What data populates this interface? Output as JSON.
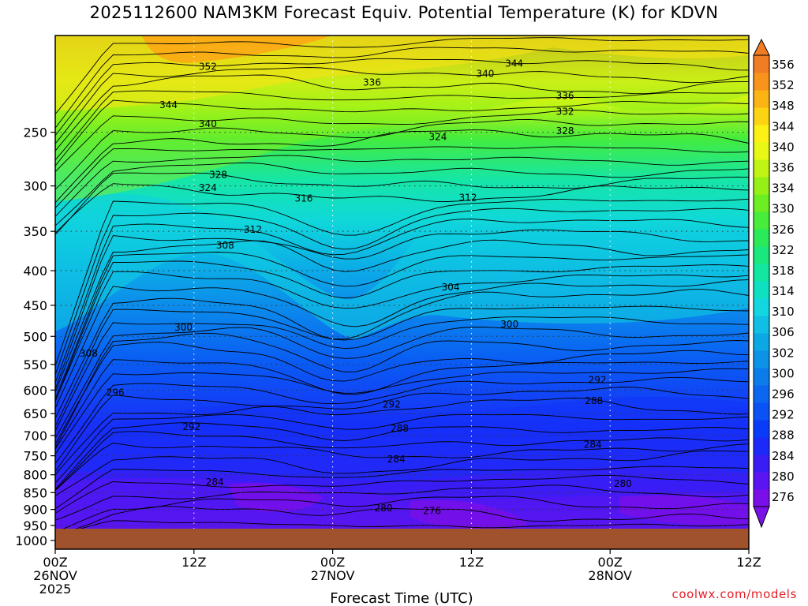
{
  "chart_data": {
    "type": "contour",
    "title": "2025112600 NAM3KM Forecast Equiv. Potential Temperature (K) for KDVN",
    "xlabel": "Forecast Time (UTC)",
    "ylabel": "",
    "credit": "coolwx.com/models",
    "x_ticks": [
      {
        "hours": 0,
        "lines": [
          "00Z",
          "26NOV",
          "2025"
        ]
      },
      {
        "hours": 12,
        "lines": [
          "12Z"
        ]
      },
      {
        "hours": 24,
        "lines": [
          "00Z",
          "27NOV"
        ]
      },
      {
        "hours": 36,
        "lines": [
          "12Z"
        ]
      },
      {
        "hours": 48,
        "lines": [
          "00Z",
          "28NOV"
        ]
      },
      {
        "hours": 60,
        "lines": [
          "12Z"
        ]
      }
    ],
    "xlim_hours": [
      0,
      60
    ],
    "y_ticks": [
      250,
      300,
      350,
      400,
      450,
      500,
      550,
      600,
      650,
      700,
      750,
      800,
      850,
      900,
      950,
      1000
    ],
    "ylim_hpa": [
      180,
      1030
    ],
    "y_scale": "log",
    "colorbar_levels": [
      276,
      280,
      284,
      288,
      292,
      296,
      300,
      302,
      306,
      310,
      314,
      318,
      322,
      326,
      330,
      334,
      336,
      340,
      344,
      348,
      352,
      356
    ],
    "colorbar_colors": [
      "#7a0fe8",
      "#5a15f0",
      "#3a1cf5",
      "#1b2af8",
      "#0a3cf8",
      "#0a52f5",
      "#0b66f0",
      "#0c7cea",
      "#0c92e6",
      "#0ca8e4",
      "#0fc0e4",
      "#12d6e0",
      "#10e0c2",
      "#12e6a0",
      "#1ae87c",
      "#2aea5a",
      "#48ec3a",
      "#6cee22",
      "#96f018",
      "#c0f416",
      "#e6f814",
      "#fcf014",
      "#fcd414",
      "#fcb414",
      "#f8941c",
      "#f07c24"
    ],
    "ground_color": "#a0522d",
    "contour_labels": [
      {
        "text": "352",
        "hours": 13.2,
        "p": 200
      },
      {
        "text": "344",
        "hours": 9.8,
        "p": 228
      },
      {
        "text": "340",
        "hours": 13.2,
        "p": 243
      },
      {
        "text": "336",
        "hours": 27.4,
        "p": 211
      },
      {
        "text": "340",
        "hours": 37.2,
        "p": 205
      },
      {
        "text": "344",
        "hours": 39.7,
        "p": 198
      },
      {
        "text": "336",
        "hours": 44.1,
        "p": 221
      },
      {
        "text": "332",
        "hours": 44.1,
        "p": 233
      },
      {
        "text": "328",
        "hours": 44.1,
        "p": 249
      },
      {
        "text": "324",
        "hours": 33.1,
        "p": 254
      },
      {
        "text": "328",
        "hours": 14.1,
        "p": 289
      },
      {
        "text": "324",
        "hours": 13.2,
        "p": 302
      },
      {
        "text": "316",
        "hours": 21.5,
        "p": 313
      },
      {
        "text": "312",
        "hours": 35.7,
        "p": 312
      },
      {
        "text": "312",
        "hours": 17.1,
        "p": 348
      },
      {
        "text": "308",
        "hours": 14.7,
        "p": 367
      },
      {
        "text": "304",
        "hours": 34.2,
        "p": 423
      },
      {
        "text": "300",
        "hours": 11.1,
        "p": 485
      },
      {
        "text": "300",
        "hours": 39.3,
        "p": 480
      },
      {
        "text": "308",
        "hours": 2.9,
        "p": 530
      },
      {
        "text": "296",
        "hours": 5.2,
        "p": 605
      },
      {
        "text": "292",
        "hours": 46.9,
        "p": 580
      },
      {
        "text": "288",
        "hours": 46.6,
        "p": 622
      },
      {
        "text": "292",
        "hours": 29.1,
        "p": 630
      },
      {
        "text": "292",
        "hours": 11.8,
        "p": 680
      },
      {
        "text": "288",
        "hours": 29.8,
        "p": 684
      },
      {
        "text": "284",
        "hours": 46.5,
        "p": 722
      },
      {
        "text": "284",
        "hours": 29.5,
        "p": 759
      },
      {
        "text": "280",
        "hours": 49.1,
        "p": 825
      },
      {
        "text": "284",
        "hours": 13.8,
        "p": 820
      },
      {
        "text": "280",
        "hours": 28.4,
        "p": 896
      },
      {
        "text": "276",
        "hours": 32.6,
        "p": 905
      }
    ]
  }
}
